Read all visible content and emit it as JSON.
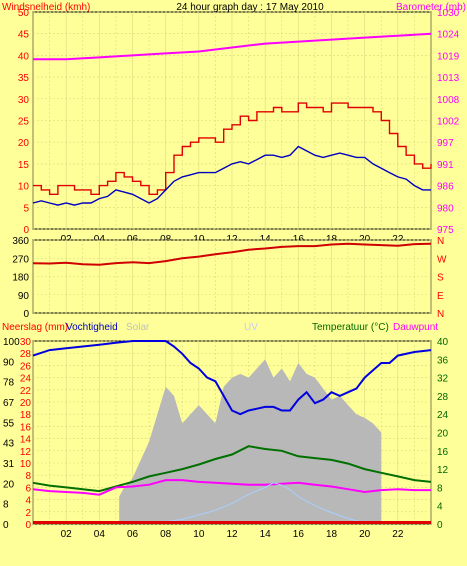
{
  "chart_data": [
    {
      "type": "line",
      "title": "24 hour graph day : 17 May 2010",
      "y_left_label": "Windsnelheid (kmh)",
      "y_right_label": "Barometer (mb)",
      "y_left_ticks": [
        "0",
        "5",
        "10",
        "15",
        "20",
        "25",
        "30",
        "35",
        "40",
        "45",
        "50"
      ],
      "y_right_ticks": [
        "975",
        "980",
        "986",
        "991",
        "997",
        "1002",
        "1008",
        "1013",
        "1019",
        "1024",
        "1030"
      ],
      "ylim_left": [
        0,
        50
      ],
      "ylim_right": [
        975,
        1030
      ],
      "x_ticks": [
        "02",
        "04",
        "06",
        "08",
        "10",
        "12",
        "14",
        "16",
        "18",
        "20",
        "22"
      ],
      "xlim": [
        0,
        24
      ],
      "series": [
        {
          "key": "gust",
          "color": "#e00000",
          "x": [
            0,
            0.5,
            1,
            1.5,
            2,
            2.5,
            3,
            3.5,
            4,
            4.5,
            5,
            5.5,
            6,
            6.5,
            7,
            7.5,
            8,
            8.5,
            9,
            9.5,
            10,
            10.5,
            11,
            11.5,
            12,
            12.5,
            13,
            13.5,
            14,
            14.5,
            15,
            15.5,
            16,
            16.5,
            17,
            17.5,
            18,
            18.5,
            19,
            19.5,
            20,
            20.5,
            21,
            21.5,
            22,
            22.5,
            23,
            23.5,
            24
          ],
          "y": [
            10,
            9,
            8,
            10,
            10,
            9,
            9,
            8,
            10,
            11,
            13,
            12,
            11,
            10,
            8,
            9,
            13,
            17,
            19,
            20,
            21,
            21,
            20,
            23,
            24,
            26,
            25,
            27,
            27,
            28,
            27,
            27,
            29,
            28,
            28,
            27,
            29,
            29,
            28,
            28,
            28,
            27,
            25,
            22,
            19,
            17,
            15,
            14,
            15
          ]
        },
        {
          "key": "wind",
          "color": "#0000c0",
          "x": [
            0,
            0.5,
            1,
            1.5,
            2,
            2.5,
            3,
            3.5,
            4,
            4.5,
            5,
            5.5,
            6,
            6.5,
            7,
            7.5,
            8,
            8.5,
            9,
            9.5,
            10,
            10.5,
            11,
            11.5,
            12,
            12.5,
            13,
            13.5,
            14,
            14.5,
            15,
            15.5,
            16,
            16.5,
            17,
            17.5,
            18,
            18.5,
            19,
            19.5,
            20,
            20.5,
            21,
            21.5,
            22,
            22.5,
            23,
            23.5,
            24
          ],
          "y": [
            6,
            6.5,
            6,
            5.5,
            6,
            5.5,
            6,
            6,
            7,
            7.5,
            9,
            8.5,
            8,
            7,
            6,
            7,
            9,
            11,
            12,
            12.5,
            13,
            13,
            13,
            14,
            15,
            15.5,
            15,
            16,
            17,
            17,
            16.5,
            17,
            19,
            18,
            17,
            16.5,
            17,
            17.5,
            17,
            16.5,
            16.5,
            15,
            14,
            13,
            12,
            11.5,
            10,
            9,
            9
          ]
        },
        {
          "key": "barometer",
          "color": "#ff00ff",
          "axis": "right",
          "x": [
            0,
            2,
            4,
            6,
            8,
            10,
            12,
            14,
            16,
            18,
            20,
            22,
            24
          ],
          "y": [
            1018,
            1018,
            1018.5,
            1019,
            1019.5,
            1020,
            1021,
            1022,
            1022.5,
            1023,
            1023.5,
            1024,
            1024.5
          ]
        }
      ]
    },
    {
      "type": "line",
      "title": "",
      "y_left_ticks": [
        "0",
        "90",
        "180",
        "270",
        "360"
      ],
      "y_right_ticks": [
        "N",
        "W",
        "S",
        "E",
        "N"
      ],
      "ylim": [
        0,
        360
      ],
      "xlim": [
        0,
        24
      ],
      "series": [
        {
          "key": "direction",
          "color": "#d00000",
          "x": [
            0,
            1,
            2,
            3,
            4,
            5,
            6,
            7,
            8,
            9,
            10,
            11,
            12,
            13,
            14,
            15,
            16,
            17,
            18,
            19,
            20,
            21,
            22,
            23,
            24
          ],
          "y": [
            245,
            244,
            248,
            240,
            238,
            246,
            250,
            246,
            256,
            270,
            278,
            290,
            300,
            312,
            318,
            326,
            330,
            330,
            338,
            342,
            338,
            335,
            332,
            340,
            342
          ]
        }
      ]
    },
    {
      "type": "line",
      "y_left_label_a": "Neerslag (mm)",
      "y_left_label_b": "Vochtigheid",
      "label_solar": "Solar",
      "label_uv": "UV",
      "y_right_label_a": "Temperatuur (°C)",
      "y_right_label_b": "Dauwpunt",
      "y_left_ticks_rain": [
        "0",
        "2",
        "4",
        "6",
        "8",
        "10",
        "12",
        "14",
        "16",
        "18",
        "20",
        "22",
        "24",
        "26",
        "28",
        "30"
      ],
      "y_left_ticks_hum": [
        "0",
        "8",
        "20",
        "31",
        "43",
        "55",
        "67",
        "78",
        "90",
        "100"
      ],
      "y_right_ticks": [
        "0",
        "4",
        "8",
        "12",
        "16",
        "20",
        "24",
        "28",
        "32",
        "36",
        "40"
      ],
      "ylim_humidity": [
        0,
        100
      ],
      "ylim_temperature": [
        0,
        40
      ],
      "xlim": [
        0,
        24
      ],
      "x_ticks": [
        "02",
        "04",
        "06",
        "08",
        "10",
        "12",
        "14",
        "16",
        "18",
        "20",
        "22"
      ],
      "series": [
        {
          "key": "solar",
          "color": "#b8b8b8",
          "x_start": 5.2,
          "x_end": 21.0,
          "x": [
            5.2,
            5.5,
            6,
            6.5,
            7,
            7.5,
            8,
            8.5,
            9,
            9.5,
            10,
            10.5,
            11,
            11.5,
            12,
            12.5,
            13,
            13.5,
            14,
            14.5,
            15,
            15.5,
            16,
            16.5,
            17,
            17.5,
            18,
            18.5,
            19,
            19.5,
            20,
            20.5,
            21
          ],
          "y": [
            15,
            20,
            25,
            35,
            45,
            60,
            75,
            70,
            55,
            60,
            65,
            60,
            55,
            75,
            80,
            82,
            80,
            85,
            90,
            80,
            85,
            78,
            88,
            82,
            80,
            74,
            68,
            70,
            65,
            60,
            58,
            55,
            50
          ]
        },
        {
          "key": "humidity",
          "color": "#0000e0",
          "x": [
            0,
            1,
            2,
            3,
            4,
            5,
            6,
            7,
            8,
            8.5,
            9,
            9.5,
            10,
            10.5,
            11,
            11.5,
            12,
            12.5,
            13,
            13.5,
            14,
            14.5,
            15,
            15.5,
            16,
            16.5,
            17,
            17.5,
            18,
            18.5,
            19,
            19.5,
            20,
            20.5,
            21,
            21.5,
            22,
            23,
            24
          ],
          "y": [
            92,
            95,
            96,
            97,
            98,
            99,
            100,
            100,
            100,
            97,
            93,
            88,
            85,
            80,
            78,
            70,
            62,
            60,
            62,
            63,
            64,
            64,
            62,
            62,
            68,
            72,
            66,
            68,
            72,
            70,
            72,
            74,
            80,
            84,
            88,
            88,
            92,
            94,
            95
          ]
        },
        {
          "key": "temperature",
          "color": "#007000",
          "axis": "right",
          "x": [
            0,
            1,
            2,
            3,
            4,
            5,
            6,
            7,
            8,
            9,
            10,
            11,
            12,
            13,
            14,
            15,
            16,
            17,
            18,
            19,
            20,
            21,
            22,
            23,
            24
          ],
          "y": [
            9,
            8.4,
            8,
            7.6,
            7.2,
            8.2,
            9.2,
            10.4,
            11.2,
            12,
            13,
            14.2,
            15.2,
            17,
            16.4,
            16,
            14.8,
            14.4,
            14,
            13.2,
            12,
            11.2,
            10.4,
            9.6,
            9.2
          ]
        },
        {
          "key": "dewpoint",
          "color": "#ff00ff",
          "axis": "right",
          "x": [
            0,
            1,
            2,
            3,
            4,
            5,
            6,
            7,
            8,
            9,
            10,
            11,
            12,
            13,
            14,
            15,
            16,
            17,
            18,
            19,
            20,
            21,
            22,
            23,
            24
          ],
          "y": [
            7.6,
            7.2,
            7,
            6.8,
            6.4,
            8,
            8.2,
            8.6,
            9.6,
            9.6,
            9.2,
            9,
            8.8,
            8.6,
            8.6,
            8.8,
            9,
            8.6,
            8.2,
            7.6,
            7,
            7.4,
            7.6,
            7.4,
            7.4
          ]
        },
        {
          "key": "uv",
          "color": "#a8d0ff",
          "axis": "right",
          "scale": 1,
          "x": [
            8,
            9,
            10,
            11,
            12,
            13,
            14,
            14.5,
            15,
            15.5,
            16,
            17,
            18,
            19,
            20
          ],
          "y": [
            0.5,
            1,
            2,
            3,
            4.5,
            6.5,
            8,
            9,
            8.5,
            7.5,
            6,
            4,
            2.5,
            1.2,
            0.3
          ]
        },
        {
          "key": "rain",
          "color": "#e00000",
          "x": [
            0,
            24
          ],
          "y": [
            0,
            0
          ]
        }
      ]
    }
  ]
}
